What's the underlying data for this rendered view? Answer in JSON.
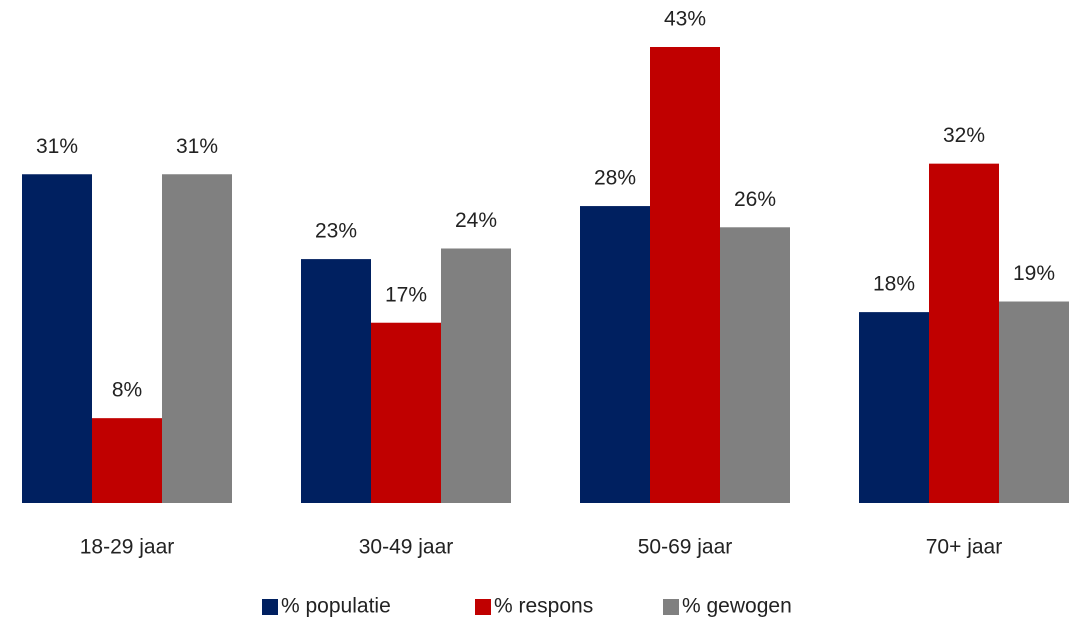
{
  "chart_data": {
    "type": "bar",
    "categories": [
      "18-29 jaar",
      "30-49 jaar",
      "50-69 jaar",
      "70+ jaar"
    ],
    "series": [
      {
        "name": "% populatie",
        "color": "#002060",
        "values": [
          31,
          23,
          28,
          18
        ],
        "value_labels": [
          "31%",
          "23%",
          "28%",
          "18%"
        ]
      },
      {
        "name": "% respons",
        "color": "#c00000",
        "values": [
          8,
          17,
          43,
          32
        ],
        "value_labels": [
          "8%",
          "17%",
          "43%",
          "32%"
        ]
      },
      {
        "name": "% gewogen",
        "color": "#808080",
        "values": [
          31,
          24,
          26,
          19
        ],
        "value_labels": [
          "31%",
          "24%",
          "26%",
          "19%"
        ]
      }
    ],
    "legend": "bottom"
  }
}
